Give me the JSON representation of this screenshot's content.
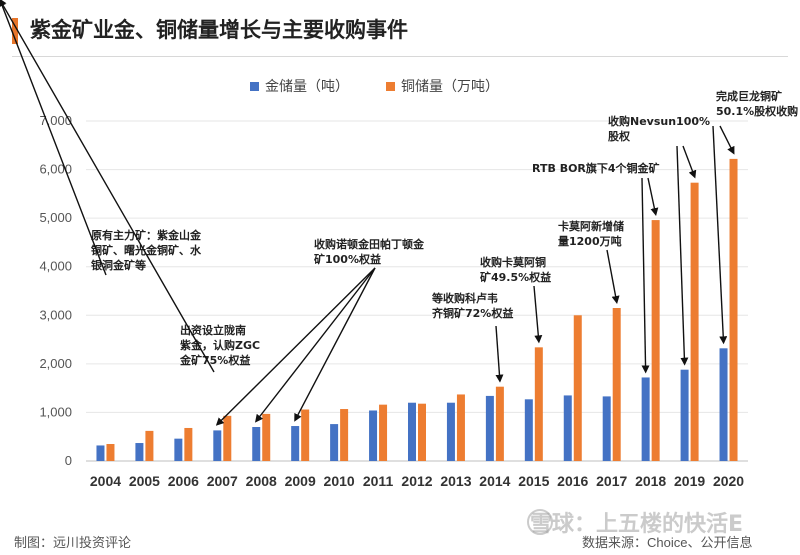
{
  "title": "紫金矿业金、铜储量增长与主要收购事件",
  "footer": {
    "left": "制图：远川投资评论",
    "right": "数据来源：Choice、公开信息"
  },
  "watermark": "雪球：上五楼的快活E",
  "colors": {
    "gold": "#4472C4",
    "copper": "#ED7D31",
    "accent": "#E8762B"
  },
  "chart_data": {
    "type": "bar",
    "categories": [
      "2004",
      "2005",
      "2006",
      "2007",
      "2008",
      "2009",
      "2010",
      "2011",
      "2012",
      "2013",
      "2014",
      "2015",
      "2016",
      "2017",
      "2018",
      "2019",
      "2020"
    ],
    "series": [
      {
        "name": "金储量（吨）",
        "values": [
          320,
          370,
          460,
          630,
          700,
          720,
          760,
          1040,
          1200,
          1200,
          1340,
          1270,
          1350,
          1330,
          1720,
          1880,
          2320
        ]
      },
      {
        "name": "铜储量（万吨）",
        "values": [
          350,
          620,
          680,
          930,
          970,
          1060,
          1070,
          1160,
          1180,
          1370,
          1530,
          2340,
          3000,
          3150,
          4960,
          5730,
          6220
        ]
      }
    ],
    "ylim": [
      0,
      7000
    ],
    "yticks": [
      "0",
      "1,000",
      "2,000",
      "3,000",
      "4,000",
      "5,000",
      "6,000",
      "7,000"
    ],
    "legend": "top",
    "annotations": [
      {
        "lines": [
          "原有主力矿：紫金山金",
          "铜矿、曙光金铜矿、水",
          "银洞金矿等"
        ]
      },
      {
        "lines": [
          "出资设立陇南",
          "紫金，认购ZGC",
          "金矿75%权益"
        ]
      },
      {
        "lines": [
          "收购诺顿金田帕丁顿金",
          "矿100%权益"
        ]
      },
      {
        "lines": [
          "等收购科卢韦",
          "齐铜矿72%权益"
        ]
      },
      {
        "lines": [
          "收购卡莫阿铜",
          "矿49.5%权益"
        ]
      },
      {
        "lines": [
          "卡莫阿新增储",
          "量1200万吨"
        ]
      },
      {
        "lines": [
          "RTB BOR旗下4个铜金矿"
        ]
      },
      {
        "lines": [
          "收购Nevsun100%",
          "股权"
        ]
      },
      {
        "lines": [
          "完成巨龙铜矿",
          "50.1%股权收购"
        ]
      }
    ]
  }
}
